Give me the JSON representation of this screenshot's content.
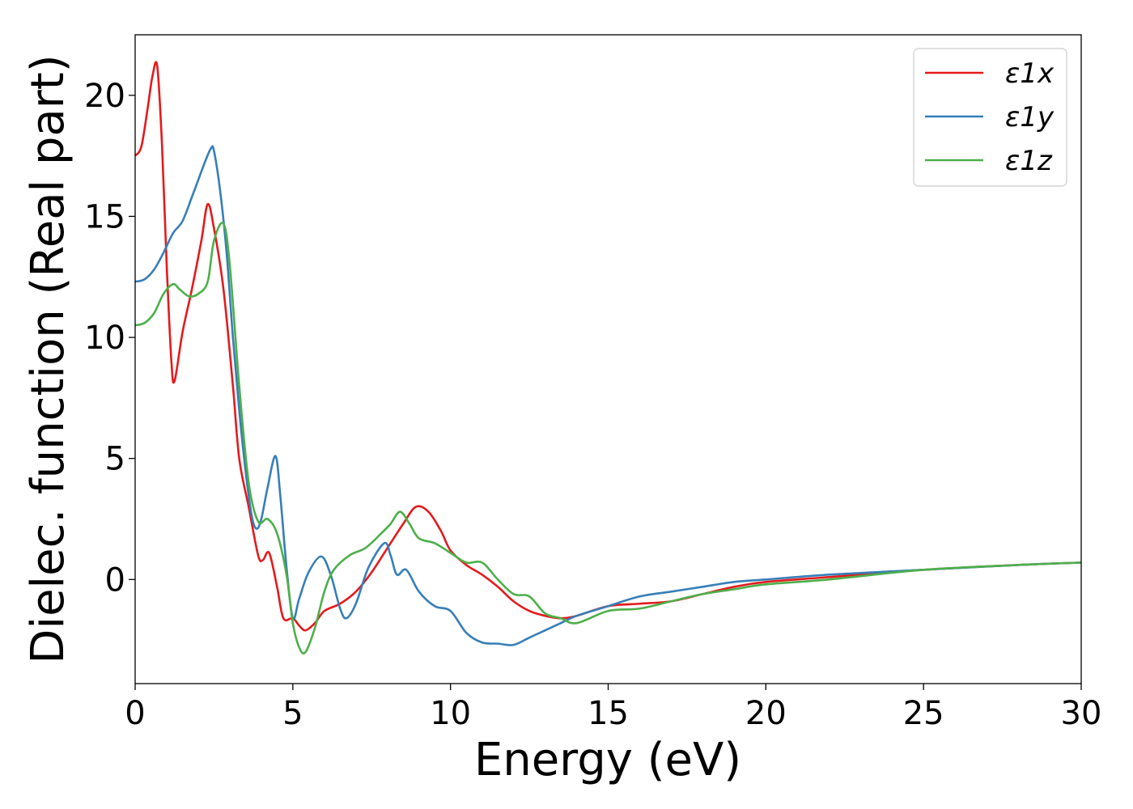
{
  "chart_data": {
    "type": "line",
    "title": "",
    "xlabel": "Energy (eV)",
    "ylabel": "Dielec. function (Real part)",
    "xlim": [
      0,
      30
    ],
    "ylim": [
      -4.3,
      22.5
    ],
    "xticks": [
      0,
      5,
      10,
      15,
      20,
      25,
      30
    ],
    "xtick_labels": [
      "0",
      "5",
      "10",
      "15",
      "20",
      "25",
      "30"
    ],
    "yticks": [
      0,
      5,
      10,
      15,
      20
    ],
    "ytick_labels": [
      "0",
      "5",
      "10",
      "15",
      "20"
    ],
    "grid": false,
    "legend_position": "top-right",
    "series": [
      {
        "name": "ε1x",
        "color": "#e41a1c",
        "x": [
          0,
          0.2,
          0.4,
          0.55,
          0.7,
          0.85,
          1.0,
          1.15,
          1.25,
          1.5,
          1.8,
          2.1,
          2.3,
          2.5,
          2.8,
          3.1,
          3.3,
          3.6,
          3.9,
          4.05,
          4.25,
          4.5,
          4.7,
          5.0,
          5.2,
          5.4,
          5.7,
          6.0,
          6.5,
          7.0,
          7.5,
          8.0,
          8.5,
          8.9,
          9.3,
          9.7,
          10.0,
          10.5,
          11.0,
          11.5,
          12.0,
          12.5,
          13.0,
          13.5,
          14.0,
          15.0,
          16.0,
          17.0,
          18.0,
          19.0,
          20.0,
          22.0,
          25.0,
          28.0,
          30.0
        ],
        "y": [
          17.5,
          17.9,
          19.5,
          20.8,
          21.2,
          18.0,
          13.0,
          9.0,
          8.2,
          10.2,
          12.0,
          14.0,
          15.5,
          14.5,
          12.0,
          8.0,
          5.0,
          3.0,
          1.0,
          0.8,
          1.1,
          -0.3,
          -1.6,
          -1.6,
          -1.9,
          -2.1,
          -1.8,
          -1.3,
          -1.0,
          -0.5,
          0.3,
          1.3,
          2.3,
          3.0,
          2.8,
          2.0,
          1.2,
          0.6,
          0.2,
          -0.3,
          -0.9,
          -1.3,
          -1.5,
          -1.6,
          -1.5,
          -1.1,
          -1.0,
          -0.9,
          -0.6,
          -0.3,
          -0.1,
          0.1,
          0.4,
          0.6,
          0.7
        ]
      },
      {
        "name": "ε1y",
        "color": "#377eb8",
        "x": [
          0,
          0.3,
          0.6,
          0.9,
          1.2,
          1.5,
          1.8,
          2.0,
          2.2,
          2.4,
          2.5,
          2.7,
          2.9,
          3.1,
          3.3,
          3.5,
          3.7,
          3.85,
          4.0,
          4.2,
          4.45,
          4.6,
          4.8,
          5.0,
          5.2,
          5.5,
          5.9,
          6.2,
          6.5,
          6.7,
          7.0,
          7.4,
          7.9,
          8.1,
          8.3,
          8.6,
          9.0,
          9.5,
          10.0,
          10.5,
          11.0,
          11.5,
          12.0,
          12.5,
          13.0,
          13.5,
          14.0,
          15.0,
          16.0,
          17.0,
          18.0,
          19.0,
          20.0,
          22.0,
          25.0,
          28.0,
          30.0
        ],
        "y": [
          12.3,
          12.4,
          12.8,
          13.5,
          14.3,
          14.8,
          15.8,
          16.5,
          17.2,
          17.8,
          17.7,
          16.0,
          13.5,
          10.0,
          7.0,
          4.5,
          2.6,
          2.1,
          2.5,
          3.8,
          5.1,
          3.5,
          0.5,
          -1.6,
          -0.8,
          0.3,
          0.95,
          0.2,
          -1.2,
          -1.6,
          -1.0,
          0.5,
          1.5,
          1.0,
          0.2,
          0.4,
          -0.5,
          -1.1,
          -1.3,
          -2.2,
          -2.6,
          -2.65,
          -2.7,
          -2.4,
          -2.1,
          -1.8,
          -1.5,
          -1.1,
          -0.7,
          -0.5,
          -0.3,
          -0.1,
          0.0,
          0.2,
          0.4,
          0.6,
          0.7
        ]
      },
      {
        "name": "ε1z",
        "color": "#4daf4a",
        "x": [
          0,
          0.3,
          0.6,
          0.9,
          1.2,
          1.4,
          1.7,
          2.0,
          2.3,
          2.5,
          2.8,
          3.0,
          3.3,
          3.6,
          3.9,
          4.2,
          4.5,
          4.8,
          5.0,
          5.2,
          5.4,
          5.7,
          6.0,
          6.3,
          6.8,
          7.3,
          7.8,
          8.1,
          8.4,
          8.7,
          9.0,
          9.5,
          10.0,
          10.5,
          11.0,
          11.5,
          12.0,
          12.5,
          13.0,
          13.5,
          14.0,
          15.0,
          16.0,
          17.0,
          18.0,
          19.0,
          20.0,
          22.0,
          25.0,
          28.0,
          30.0
        ],
        "y": [
          10.5,
          10.6,
          11.0,
          11.8,
          12.2,
          12.0,
          11.7,
          11.8,
          12.3,
          14.0,
          14.7,
          13.0,
          8.0,
          4.0,
          2.4,
          2.5,
          1.9,
          0.2,
          -1.8,
          -2.8,
          -3.0,
          -2.0,
          -0.5,
          0.4,
          1.0,
          1.3,
          1.9,
          2.3,
          2.8,
          2.3,
          1.7,
          1.5,
          1.1,
          0.7,
          0.7,
          0.0,
          -0.6,
          -0.7,
          -1.4,
          -1.6,
          -1.8,
          -1.3,
          -1.2,
          -0.9,
          -0.6,
          -0.4,
          -0.2,
          0.0,
          0.4,
          0.6,
          0.7
        ]
      }
    ]
  }
}
